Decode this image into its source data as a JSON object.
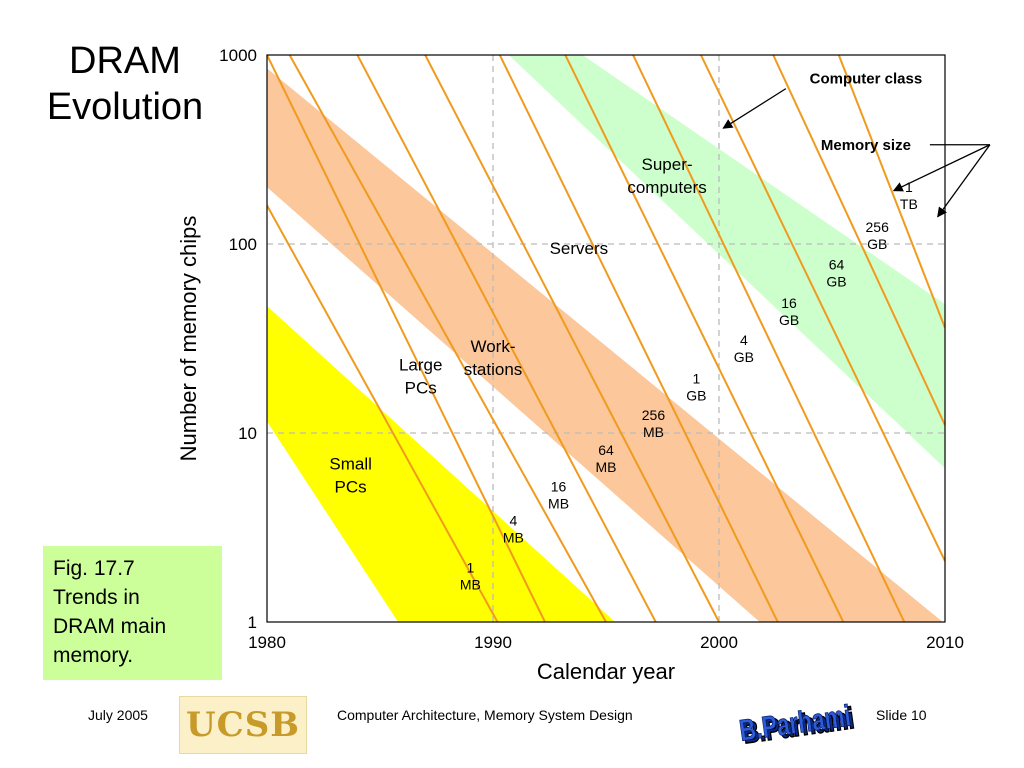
{
  "slide": {
    "title_lines": [
      "DRAM",
      "Evolution"
    ],
    "caption_lines": [
      "Fig. 17.7",
      "Trends in",
      "DRAM main",
      "memory."
    ]
  },
  "footer": {
    "date": "July 2005",
    "course": "Computer Architecture, Memory System Design",
    "slide_number": "Slide 10",
    "logo_text": "UCSB",
    "author_logo_text": "B.Parhami"
  },
  "chart_data": {
    "type": "line",
    "xlabel": "Calendar year",
    "ylabel": "Number of memory chips",
    "xlim": [
      1980,
      2010
    ],
    "ylim": [
      1,
      1000
    ],
    "yscale": "log",
    "xticks": [
      "1980",
      "1990",
      "2000",
      "2010"
    ],
    "yticks": [
      "1",
      "10",
      "100",
      "1000"
    ],
    "grid": true,
    "colors": {
      "memory_lines": "#f09a1e",
      "small_pcs": "#ffff00",
      "workstations": "#fcc79a",
      "supercomputers": "#ccffcc",
      "grid": "#bbbbbb"
    },
    "bands": [
      {
        "name": "Small PCs",
        "label_lines": [
          "Small",
          "PCs"
        ],
        "color": "#ffff00",
        "lower": [
          [
            1985.8,
            1
          ],
          [
            1980,
            11.5
          ]
        ],
        "upper": [
          [
            1995.4,
            1
          ],
          [
            1980,
            47
          ]
        ]
      },
      {
        "name": "Work-stations",
        "label_lines": [
          "Work-",
          "stations"
        ],
        "color": "#fcc79a",
        "lower": [
          [
            2001.8,
            1
          ],
          [
            1980,
            200
          ]
        ],
        "upper": [
          [
            2009.9,
            1
          ],
          [
            1980,
            850
          ]
        ]
      },
      {
        "name": "Super-computers",
        "label_lines": [
          "Super-",
          "computers"
        ],
        "color": "#ccffcc",
        "lower": [
          [
            2010,
            6.5
          ],
          [
            1990,
            1200
          ]
        ],
        "upper": [
          [
            2010,
            48
          ],
          [
            1993,
            1200
          ]
        ]
      }
    ],
    "class_labels": [
      {
        "name": "Large PCs",
        "lines": [
          "Large",
          "PCs"
        ],
        "x": 1986.8,
        "y": 20
      },
      {
        "name": "Servers",
        "lines": [
          "Servers"
        ],
        "x": 1993.8,
        "y": 95
      }
    ],
    "memory_lines": [
      {
        "size": [
          "1",
          "MB"
        ],
        "points": [
          [
            1980,
            160
          ],
          [
            1990.2,
            1
          ]
        ],
        "label_at": [
          1989.0,
          1.75
        ]
      },
      {
        "size": [
          "4",
          "MB"
        ],
        "points": [
          [
            1980,
            1000
          ],
          [
            1992.3,
            1
          ]
        ],
        "label_at": [
          1990.9,
          3.1
        ]
      },
      {
        "size": [
          "16",
          "MB"
        ],
        "points": [
          [
            1981.0,
            1000
          ],
          [
            1995.0,
            1
          ]
        ],
        "label_at": [
          1992.9,
          4.7
        ]
      },
      {
        "size": [
          "64",
          "MB"
        ],
        "points": [
          [
            1984.0,
            1000
          ],
          [
            1997.2,
            1
          ]
        ],
        "label_at": [
          1995.0,
          7.3
        ]
      },
      {
        "size": [
          "256",
          "MB"
        ],
        "points": [
          [
            1987.0,
            1000
          ],
          [
            2000.0,
            1
          ]
        ],
        "label_at": [
          1997.1,
          11.2
        ]
      },
      {
        "size": [
          "1",
          "GB"
        ],
        "points": [
          [
            1990.3,
            1000
          ],
          [
            2002.6,
            1
          ]
        ],
        "label_at": [
          1999.0,
          17.5
        ]
      },
      {
        "size": [
          "4",
          "GB"
        ],
        "points": [
          [
            1993.2,
            1000
          ],
          [
            2005.5,
            1
          ]
        ],
        "label_at": [
          2001.1,
          28
        ]
      },
      {
        "size": [
          "16",
          "GB"
        ],
        "points": [
          [
            1996.2,
            1000
          ],
          [
            2008.2,
            1
          ]
        ],
        "label_at": [
          2003.1,
          44
        ]
      },
      {
        "size": [
          "64",
          "GB"
        ],
        "points": [
          [
            1999.2,
            1000
          ],
          [
            2010,
            2.1
          ]
        ],
        "label_at": [
          2005.2,
          70
        ]
      },
      {
        "size": [
          "256",
          "GB"
        ],
        "points": [
          [
            2002.4,
            1000
          ],
          [
            2010,
            11
          ]
        ],
        "label_at": [
          2007.0,
          111
        ]
      },
      {
        "size": [
          "1",
          "TB"
        ],
        "points": [
          [
            2005.3,
            1000
          ],
          [
            2010,
            36
          ]
        ],
        "label_at": [
          2008.4,
          180
        ]
      }
    ],
    "annotations": [
      {
        "name": "computer-class",
        "text": "Computer class",
        "x": 2006.5,
        "y": 750,
        "arrow_to": [
          2000.1,
          400
        ]
      },
      {
        "name": "memory-size",
        "text": "Memory size",
        "x": 2006.5,
        "y": 335,
        "arrow_to": [
          2009.5,
          150
        ]
      }
    ]
  }
}
